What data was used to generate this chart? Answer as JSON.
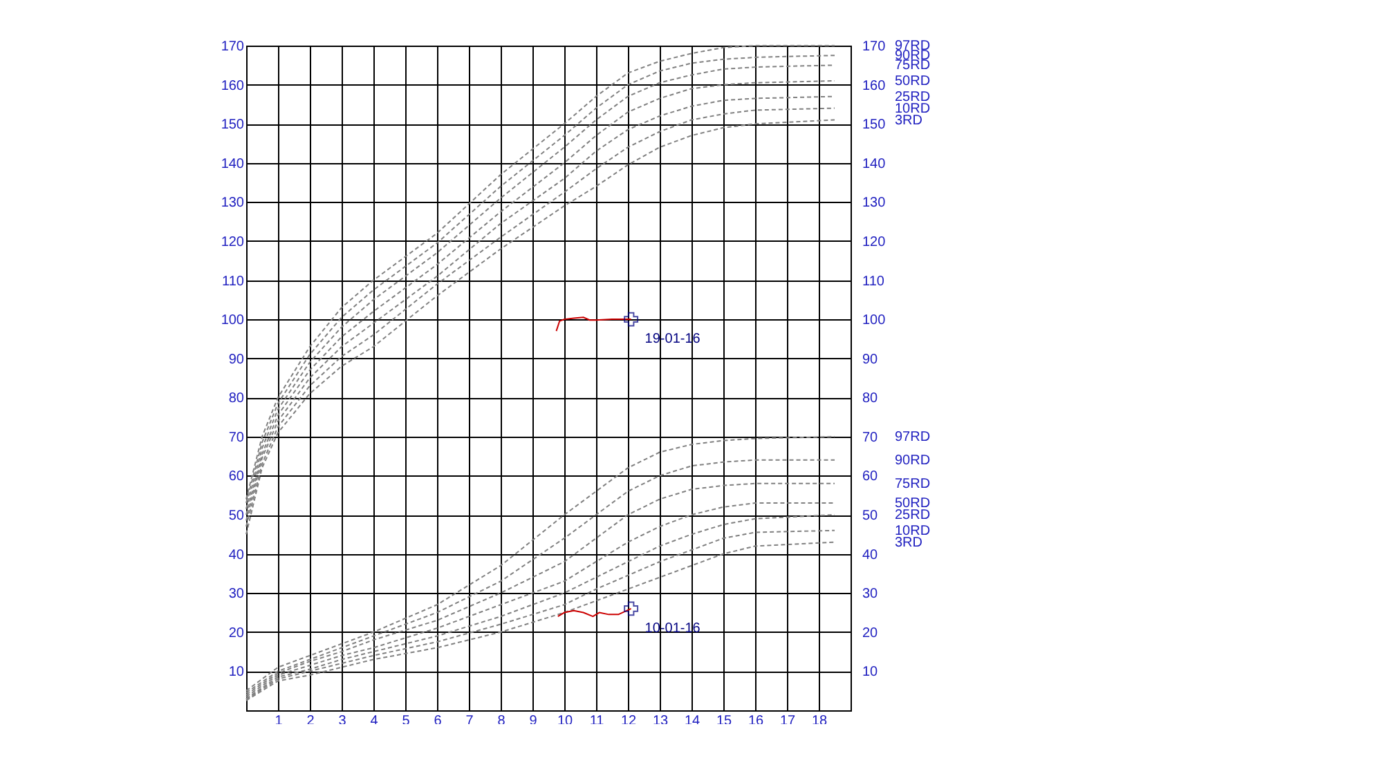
{
  "chart_data": {
    "type": "line",
    "grid": true,
    "xlim": [
      0,
      19
    ],
    "xticks": [
      1,
      2,
      3,
      4,
      5,
      6,
      7,
      8,
      9,
      10,
      11,
      12,
      13,
      14,
      15,
      16,
      17,
      18
    ],
    "ylim": [
      0,
      170
    ],
    "yticks": [
      10,
      20,
      30,
      40,
      50,
      60,
      70,
      80,
      90,
      100,
      110,
      120,
      130,
      140,
      150,
      160,
      170
    ],
    "y2lim": [
      0,
      170
    ],
    "y2ticks": [
      10,
      20,
      30,
      40,
      50,
      60,
      70,
      80,
      90,
      100,
      110,
      120,
      130,
      140,
      150,
      160,
      170
    ],
    "annotations": [
      {
        "text": "19-01-16",
        "x": 12.1,
        "y": 100
      },
      {
        "text": "10-01-16",
        "x": 12.1,
        "y": 26
      }
    ],
    "series": [
      {
        "name": "97RD",
        "color": "#808080",
        "line_style": "dashed",
        "x": [
          0,
          0.5,
          1,
          2,
          3,
          4,
          6,
          8,
          10,
          11,
          12,
          13,
          14,
          15,
          16,
          18.5
        ],
        "values": [
          54,
          70,
          80,
          93,
          103,
          110,
          122,
          137,
          150,
          157,
          163,
          166,
          168,
          169.5,
          170,
          170
        ]
      },
      {
        "name": "90RD",
        "color": "#808080",
        "line_style": "dashed",
        "x": [
          0,
          0.5,
          1,
          2,
          3,
          4,
          6,
          8,
          10,
          11,
          12,
          13,
          14,
          15,
          16,
          18.5
        ],
        "values": [
          53,
          68.5,
          78.5,
          91,
          100.5,
          107.5,
          119.5,
          134,
          147,
          154,
          160,
          163.5,
          165.5,
          166.5,
          167,
          167.5
        ]
      },
      {
        "name": "75RD",
        "color": "#808080",
        "line_style": "dashed",
        "x": [
          0,
          0.5,
          1,
          2,
          3,
          4,
          6,
          8,
          10,
          11,
          12,
          13,
          14,
          15,
          16,
          18.5
        ],
        "values": [
          51.5,
          67,
          77,
          89,
          98,
          105,
          117,
          131,
          144,
          151,
          157,
          160.5,
          162.5,
          164,
          164.5,
          165
        ]
      },
      {
        "name": "50RD",
        "color": "#808080",
        "line_style": "dashed",
        "x": [
          0,
          0.5,
          1,
          2,
          3,
          4,
          6,
          8,
          10,
          11,
          12,
          13,
          14,
          15,
          16,
          18.5
        ],
        "values": [
          50,
          65.5,
          75.5,
          87,
          95.5,
          102,
          114,
          127.5,
          140,
          147,
          153,
          156.5,
          159,
          160,
          160.5,
          161
        ]
      },
      {
        "name": "25RD",
        "color": "#808080",
        "line_style": "dashed",
        "x": [
          0,
          0.5,
          1,
          2,
          3,
          4,
          6,
          8,
          10,
          11,
          12,
          13,
          14,
          15,
          16,
          18.5
        ],
        "values": [
          48.5,
          64.5,
          74,
          85,
          93,
          99,
          111,
          124.5,
          136,
          143,
          148.5,
          152,
          154.5,
          156,
          156.5,
          157
        ]
      },
      {
        "name": "10RD",
        "color": "#808080",
        "line_style": "dashed",
        "x": [
          0,
          0.5,
          1,
          2,
          3,
          4,
          6,
          8,
          10,
          11,
          12,
          13,
          14,
          15,
          16,
          18.5
        ],
        "values": [
          47,
          63,
          72.5,
          83,
          90.5,
          96,
          109,
          121,
          132.5,
          138.5,
          144,
          148,
          151,
          152.5,
          153.5,
          154
        ]
      },
      {
        "name": "3RD",
        "color": "#808080",
        "line_style": "dashed",
        "x": [
          0,
          0.5,
          1,
          2,
          3,
          4,
          6,
          8,
          10,
          11,
          12,
          13,
          14,
          15,
          16,
          18.5
        ],
        "values": [
          45,
          62,
          71,
          81,
          88,
          93,
          106,
          118,
          129,
          134,
          139.5,
          144,
          147,
          149,
          150,
          151
        ]
      },
      {
        "name": "97RD",
        "color": "#808080",
        "line_style": "dashed",
        "x": [
          0,
          1,
          2,
          3,
          4,
          6,
          8,
          10,
          11,
          12,
          13,
          14,
          15,
          16,
          18.5
        ],
        "values": [
          5,
          11,
          14,
          17,
          20,
          27,
          37,
          50,
          56,
          62,
          66,
          68,
          69,
          69.5,
          70
        ]
      },
      {
        "name": "90RD",
        "color": "#808080",
        "line_style": "dashed",
        "x": [
          0,
          1,
          2,
          3,
          4,
          6,
          8,
          10,
          11,
          12,
          13,
          14,
          15,
          16,
          18.5
        ],
        "values": [
          4.5,
          10,
          13,
          16,
          19,
          25,
          33,
          44,
          50,
          56,
          60,
          62.5,
          63.5,
          64,
          64
        ]
      },
      {
        "name": "75RD",
        "color": "#808080",
        "line_style": "dashed",
        "x": [
          0,
          1,
          2,
          3,
          4,
          6,
          8,
          10,
          11,
          12,
          13,
          14,
          15,
          16,
          18.5
        ],
        "values": [
          4,
          9.5,
          12.5,
          15,
          18,
          23,
          30,
          38,
          44,
          50,
          54,
          56.5,
          57.5,
          58,
          58
        ]
      },
      {
        "name": "50RD",
        "color": "#808080",
        "line_style": "dashed",
        "x": [
          0,
          1,
          2,
          3,
          4,
          6,
          8,
          10,
          11,
          12,
          13,
          14,
          15,
          16,
          18.5
        ],
        "values": [
          3.5,
          9,
          11.5,
          14,
          16,
          21,
          27,
          33,
          38,
          43,
          47,
          50,
          52,
          53,
          53
        ]
      },
      {
        "name": "25RD",
        "color": "#808080",
        "line_style": "dashed",
        "x": [
          0,
          1,
          2,
          3,
          4,
          6,
          8,
          10,
          11,
          12,
          13,
          14,
          15,
          16,
          18.5
        ],
        "values": [
          3,
          8.5,
          10.5,
          13,
          15,
          19,
          24,
          30,
          34,
          38,
          42,
          45,
          47.5,
          49,
          50
        ]
      },
      {
        "name": "10RD",
        "color": "#808080",
        "line_style": "dashed",
        "x": [
          0,
          1,
          2,
          3,
          4,
          6,
          8,
          10,
          11,
          12,
          13,
          14,
          15,
          16,
          18.5
        ],
        "values": [
          2.8,
          8,
          10,
          12,
          14,
          17.5,
          22,
          27,
          31,
          34.5,
          38,
          41,
          44,
          45.5,
          46
        ]
      },
      {
        "name": "3RD",
        "color": "#808080",
        "line_style": "dashed",
        "x": [
          0,
          1,
          2,
          3,
          4,
          6,
          8,
          10,
          11,
          12,
          13,
          14,
          15,
          16,
          18.5
        ],
        "values": [
          2.5,
          7.5,
          9,
          11,
          13,
          16,
          20,
          25,
          28,
          31,
          34,
          37,
          40,
          42,
          43
        ]
      },
      {
        "color": "#cc0000",
        "line_style": "solid",
        "x": [
          9.75,
          9.85,
          10,
          10.3,
          10.6,
          10.8,
          11,
          11.5,
          12.1
        ],
        "values": [
          97,
          99.5,
          100,
          100.3,
          100.5,
          99.8,
          99.8,
          100,
          100
        ]
      },
      {
        "color": "#cc0000",
        "line_style": "solid",
        "x": [
          9.8,
          10,
          10.3,
          10.6,
          10.9,
          11.1,
          11.4,
          11.7,
          12.1
        ],
        "values": [
          24,
          25,
          25.5,
          25,
          24,
          25,
          24.5,
          24.5,
          26
        ]
      },
      {
        "type": "scatter",
        "marker": "cross",
        "color": "#000080",
        "x": [
          12.1
        ],
        "values": [
          100
        ]
      },
      {
        "type": "scatter",
        "marker": "cross",
        "color": "#000080",
        "x": [
          12.1
        ],
        "values": [
          26
        ]
      }
    ]
  }
}
